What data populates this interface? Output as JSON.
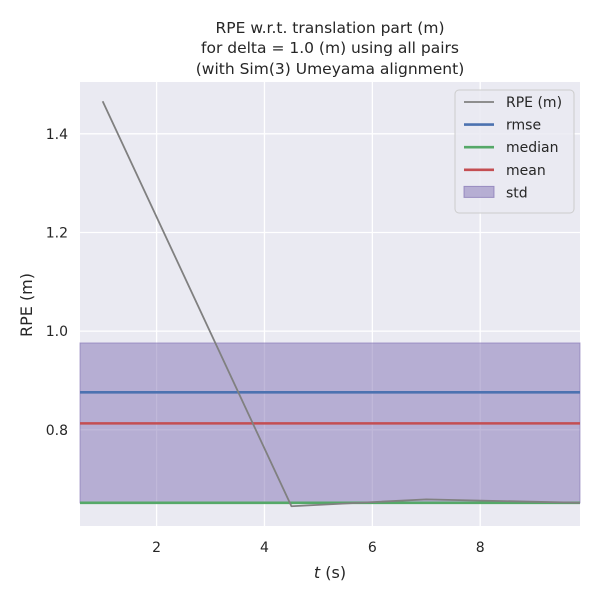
{
  "chart_data": {
    "type": "line",
    "title_lines": [
      "RPE w.r.t. translation part (m)",
      "for delta = 1.0 (m) using all pairs",
      "(with Sim(3) Umeyama alignment)"
    ],
    "xlabel_italic": "t",
    "xlabel_rest": " (s)",
    "ylabel": "RPE (m)",
    "xlim": [
      0.58,
      9.85
    ],
    "ylim": [
      0.605,
      1.505
    ],
    "x_ticks": [
      2,
      4,
      6,
      8
    ],
    "y_ticks": [
      0.8,
      1.0,
      1.2,
      1.4
    ],
    "x_tick_labels": [
      "2",
      "4",
      "6",
      "8"
    ],
    "y_tick_labels": [
      "0.8",
      "1.0",
      "1.2",
      "1.4"
    ],
    "grid": true,
    "legend_position": "top-right",
    "series": [
      {
        "name": "RPE (m)",
        "kind": "line",
        "color": "#808080",
        "x": [
          1.0,
          4.5,
          7.0,
          9.85
        ],
        "y": [
          1.466,
          0.645,
          0.659,
          0.652
        ]
      }
    ],
    "stats": [
      {
        "name": "rmse",
        "kind": "hline",
        "color": "#4c72b0",
        "value": 0.876
      },
      {
        "name": "median",
        "kind": "hline",
        "color": "#55a868",
        "value": 0.652
      },
      {
        "name": "mean",
        "kind": "hline",
        "color": "#c44e52",
        "value": 0.813
      },
      {
        "name": "std",
        "kind": "band",
        "color": "#8172b3",
        "lower": 0.652,
        "upper": 0.976
      }
    ],
    "legend": [
      {
        "label": "RPE (m)",
        "color": "#808080",
        "kind": "line"
      },
      {
        "label": "rmse",
        "color": "#4c72b0",
        "kind": "line"
      },
      {
        "label": "median",
        "color": "#55a868",
        "kind": "line"
      },
      {
        "label": "mean",
        "color": "#c44e52",
        "kind": "line"
      },
      {
        "label": "std",
        "color": "#8172b3",
        "kind": "patch"
      }
    ],
    "colors": {
      "plot_background": "#eaeaf2",
      "grid": "#ffffff",
      "text": "#262626"
    }
  }
}
